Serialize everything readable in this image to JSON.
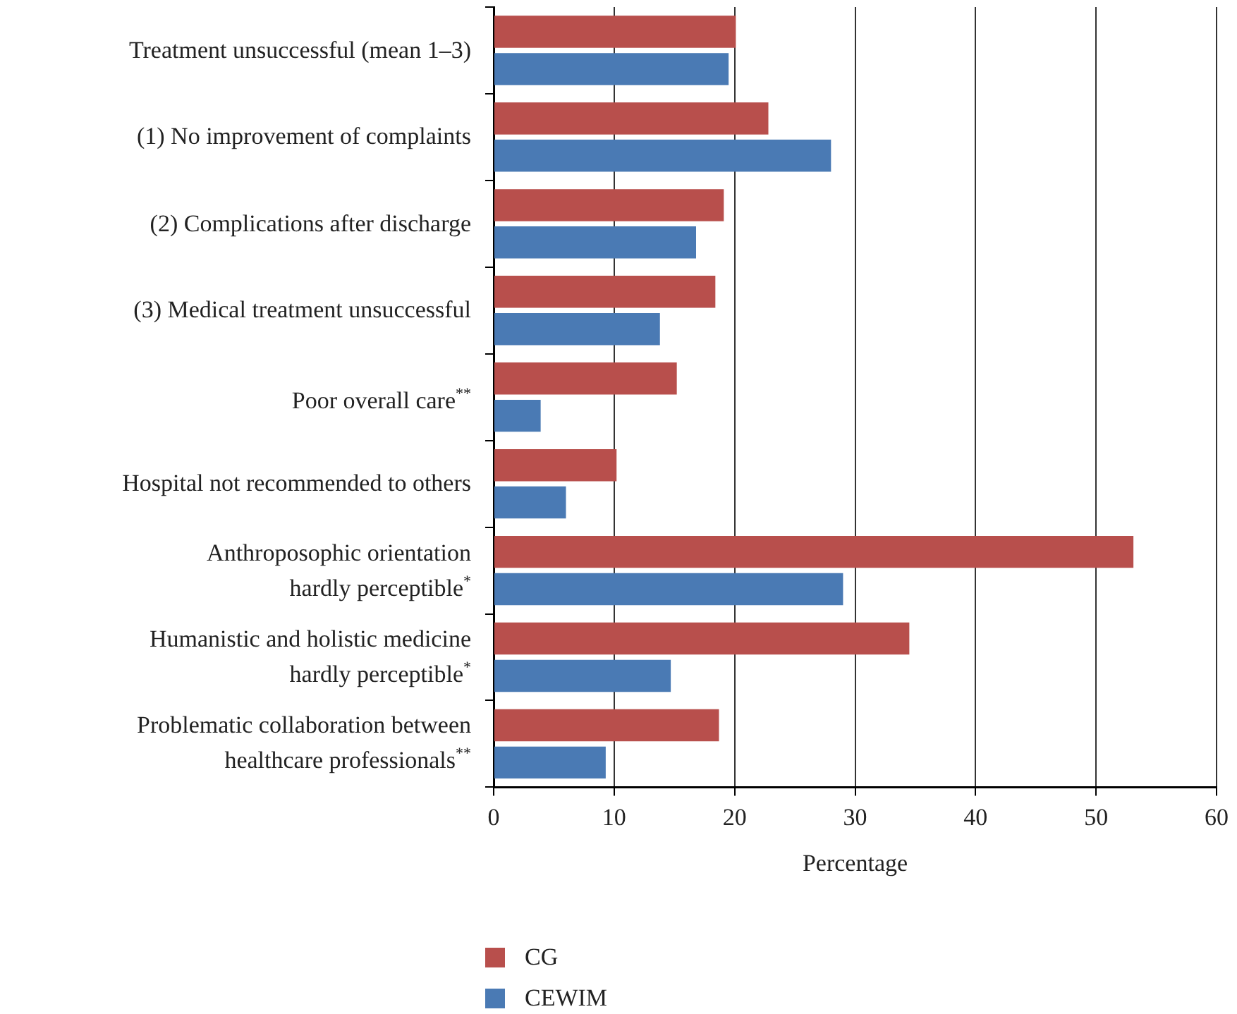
{
  "chart_data": {
    "type": "bar",
    "orientation": "horizontal",
    "xlabel": "Percentage",
    "categories": [
      "Treatment unsuccessful (mean 1–3)",
      "(1) No improvement of complaints",
      "(2) Complications after discharge",
      "(3) Medical treatment unsuccessful",
      "Poor overall care$^{**}$",
      "Hospital not recommended to others",
      "Anthroposophic orientation\nhardly perceptible$^{*}$",
      "Humanistic and holistic medicine\nhardly perceptible$^{*}$",
      "Problematic collaboration between\nhealthcare professionals$^{**}$"
    ],
    "series": [
      {
        "name": "CG",
        "color": "#b84f4c",
        "values": [
          20.1,
          22.8,
          19.1,
          18.4,
          15.2,
          10.2,
          53.1,
          34.5,
          18.7
        ]
      },
      {
        "name": "CEWIM",
        "color": "#4a7ab4",
        "values": [
          19.5,
          28.0,
          16.8,
          13.8,
          3.9,
          6.0,
          29.0,
          14.7,
          9.3
        ]
      }
    ],
    "xlim": [
      0,
      60
    ],
    "xticks": [
      0,
      10,
      20,
      30,
      40,
      50,
      60
    ],
    "grid": "x",
    "legend": "bottom left"
  }
}
